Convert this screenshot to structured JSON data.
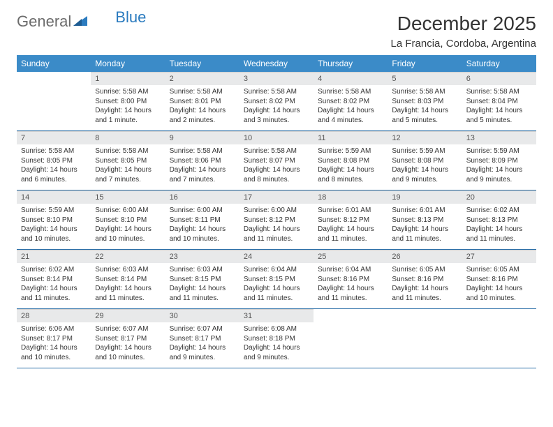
{
  "brand": {
    "part1": "General",
    "part2": "Blue"
  },
  "title": "December 2025",
  "location": "La Francia, Cordoba, Argentina",
  "colors": {
    "header_bg": "#3b8bc8",
    "header_text": "#ffffff",
    "daynum_bg": "#e8e9ea",
    "row_border": "#2b6fa8",
    "logo_gray": "#6b6b6b",
    "logo_blue": "#2b7bbf"
  },
  "weekdays": [
    "Sunday",
    "Monday",
    "Tuesday",
    "Wednesday",
    "Thursday",
    "Friday",
    "Saturday"
  ],
  "weeks": [
    [
      {
        "n": "",
        "sr": "",
        "ss": "",
        "dl": ""
      },
      {
        "n": "1",
        "sr": "Sunrise: 5:58 AM",
        "ss": "Sunset: 8:00 PM",
        "dl": "Daylight: 14 hours and 1 minute."
      },
      {
        "n": "2",
        "sr": "Sunrise: 5:58 AM",
        "ss": "Sunset: 8:01 PM",
        "dl": "Daylight: 14 hours and 2 minutes."
      },
      {
        "n": "3",
        "sr": "Sunrise: 5:58 AM",
        "ss": "Sunset: 8:02 PM",
        "dl": "Daylight: 14 hours and 3 minutes."
      },
      {
        "n": "4",
        "sr": "Sunrise: 5:58 AM",
        "ss": "Sunset: 8:02 PM",
        "dl": "Daylight: 14 hours and 4 minutes."
      },
      {
        "n": "5",
        "sr": "Sunrise: 5:58 AM",
        "ss": "Sunset: 8:03 PM",
        "dl": "Daylight: 14 hours and 5 minutes."
      },
      {
        "n": "6",
        "sr": "Sunrise: 5:58 AM",
        "ss": "Sunset: 8:04 PM",
        "dl": "Daylight: 14 hours and 5 minutes."
      }
    ],
    [
      {
        "n": "7",
        "sr": "Sunrise: 5:58 AM",
        "ss": "Sunset: 8:05 PM",
        "dl": "Daylight: 14 hours and 6 minutes."
      },
      {
        "n": "8",
        "sr": "Sunrise: 5:58 AM",
        "ss": "Sunset: 8:05 PM",
        "dl": "Daylight: 14 hours and 7 minutes."
      },
      {
        "n": "9",
        "sr": "Sunrise: 5:58 AM",
        "ss": "Sunset: 8:06 PM",
        "dl": "Daylight: 14 hours and 7 minutes."
      },
      {
        "n": "10",
        "sr": "Sunrise: 5:58 AM",
        "ss": "Sunset: 8:07 PM",
        "dl": "Daylight: 14 hours and 8 minutes."
      },
      {
        "n": "11",
        "sr": "Sunrise: 5:59 AM",
        "ss": "Sunset: 8:08 PM",
        "dl": "Daylight: 14 hours and 8 minutes."
      },
      {
        "n": "12",
        "sr": "Sunrise: 5:59 AM",
        "ss": "Sunset: 8:08 PM",
        "dl": "Daylight: 14 hours and 9 minutes."
      },
      {
        "n": "13",
        "sr": "Sunrise: 5:59 AM",
        "ss": "Sunset: 8:09 PM",
        "dl": "Daylight: 14 hours and 9 minutes."
      }
    ],
    [
      {
        "n": "14",
        "sr": "Sunrise: 5:59 AM",
        "ss": "Sunset: 8:10 PM",
        "dl": "Daylight: 14 hours and 10 minutes."
      },
      {
        "n": "15",
        "sr": "Sunrise: 6:00 AM",
        "ss": "Sunset: 8:10 PM",
        "dl": "Daylight: 14 hours and 10 minutes."
      },
      {
        "n": "16",
        "sr": "Sunrise: 6:00 AM",
        "ss": "Sunset: 8:11 PM",
        "dl": "Daylight: 14 hours and 10 minutes."
      },
      {
        "n": "17",
        "sr": "Sunrise: 6:00 AM",
        "ss": "Sunset: 8:12 PM",
        "dl": "Daylight: 14 hours and 11 minutes."
      },
      {
        "n": "18",
        "sr": "Sunrise: 6:01 AM",
        "ss": "Sunset: 8:12 PM",
        "dl": "Daylight: 14 hours and 11 minutes."
      },
      {
        "n": "19",
        "sr": "Sunrise: 6:01 AM",
        "ss": "Sunset: 8:13 PM",
        "dl": "Daylight: 14 hours and 11 minutes."
      },
      {
        "n": "20",
        "sr": "Sunrise: 6:02 AM",
        "ss": "Sunset: 8:13 PM",
        "dl": "Daylight: 14 hours and 11 minutes."
      }
    ],
    [
      {
        "n": "21",
        "sr": "Sunrise: 6:02 AM",
        "ss": "Sunset: 8:14 PM",
        "dl": "Daylight: 14 hours and 11 minutes."
      },
      {
        "n": "22",
        "sr": "Sunrise: 6:03 AM",
        "ss": "Sunset: 8:14 PM",
        "dl": "Daylight: 14 hours and 11 minutes."
      },
      {
        "n": "23",
        "sr": "Sunrise: 6:03 AM",
        "ss": "Sunset: 8:15 PM",
        "dl": "Daylight: 14 hours and 11 minutes."
      },
      {
        "n": "24",
        "sr": "Sunrise: 6:04 AM",
        "ss": "Sunset: 8:15 PM",
        "dl": "Daylight: 14 hours and 11 minutes."
      },
      {
        "n": "25",
        "sr": "Sunrise: 6:04 AM",
        "ss": "Sunset: 8:16 PM",
        "dl": "Daylight: 14 hours and 11 minutes."
      },
      {
        "n": "26",
        "sr": "Sunrise: 6:05 AM",
        "ss": "Sunset: 8:16 PM",
        "dl": "Daylight: 14 hours and 11 minutes."
      },
      {
        "n": "27",
        "sr": "Sunrise: 6:05 AM",
        "ss": "Sunset: 8:16 PM",
        "dl": "Daylight: 14 hours and 10 minutes."
      }
    ],
    [
      {
        "n": "28",
        "sr": "Sunrise: 6:06 AM",
        "ss": "Sunset: 8:17 PM",
        "dl": "Daylight: 14 hours and 10 minutes."
      },
      {
        "n": "29",
        "sr": "Sunrise: 6:07 AM",
        "ss": "Sunset: 8:17 PM",
        "dl": "Daylight: 14 hours and 10 minutes."
      },
      {
        "n": "30",
        "sr": "Sunrise: 6:07 AM",
        "ss": "Sunset: 8:17 PM",
        "dl": "Daylight: 14 hours and 9 minutes."
      },
      {
        "n": "31",
        "sr": "Sunrise: 6:08 AM",
        "ss": "Sunset: 8:18 PM",
        "dl": "Daylight: 14 hours and 9 minutes."
      },
      {
        "n": "",
        "sr": "",
        "ss": "",
        "dl": ""
      },
      {
        "n": "",
        "sr": "",
        "ss": "",
        "dl": ""
      },
      {
        "n": "",
        "sr": "",
        "ss": "",
        "dl": ""
      }
    ]
  ]
}
